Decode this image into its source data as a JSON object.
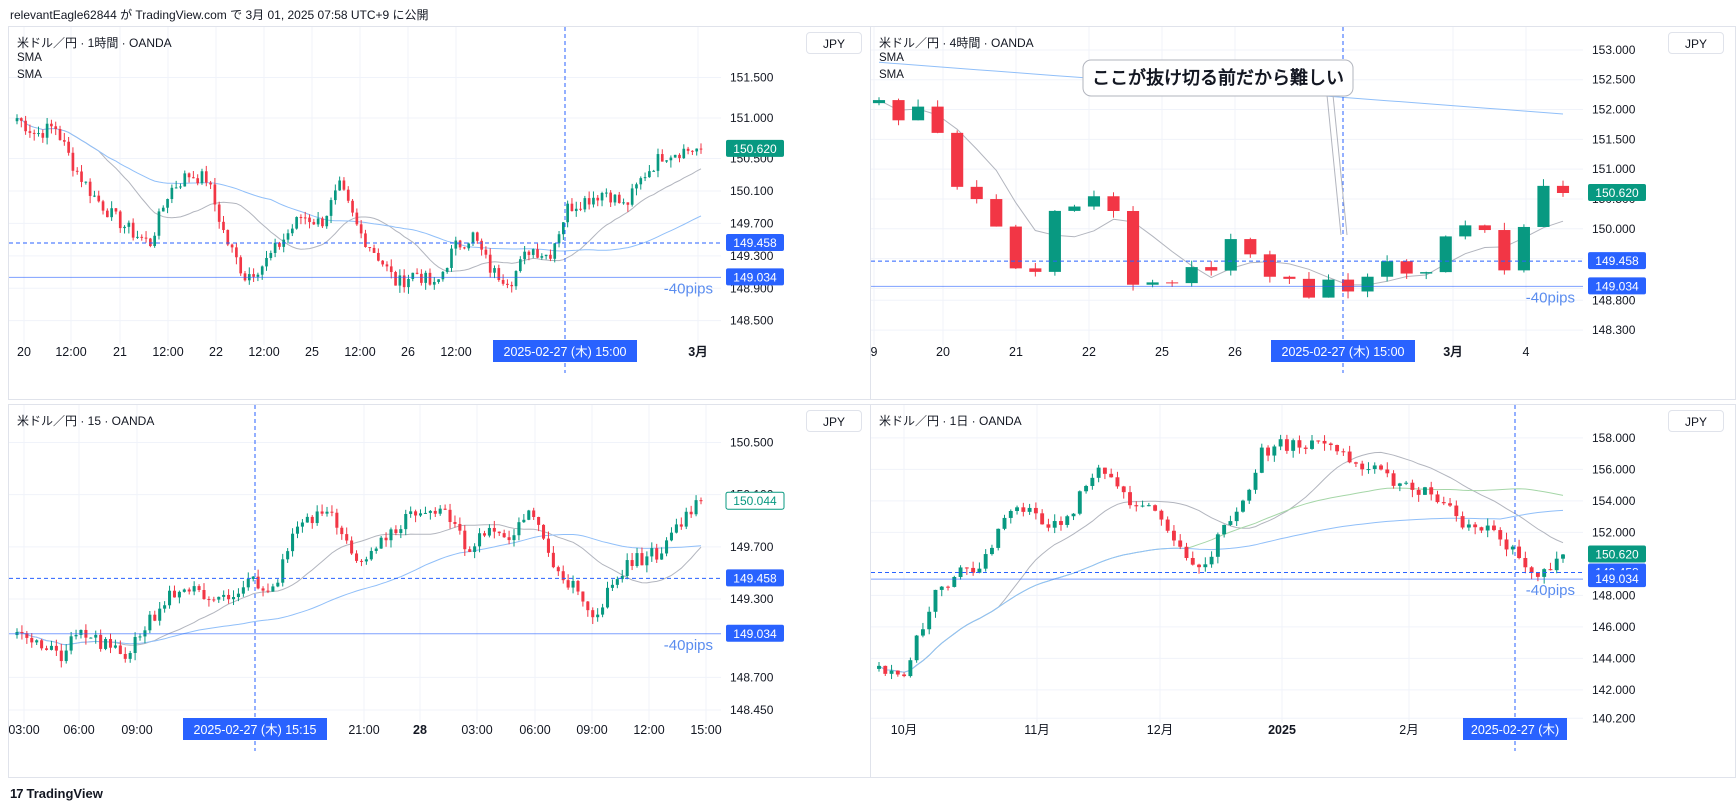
{
  "header": "relevantEagle62844 が TradingView.com で 3月 01, 2025 07:58 UTC+9 に公開",
  "footer": {
    "logo_icon": "tradingview-logo-icon",
    "text": "TradingView"
  },
  "colors": {
    "up": "#089981",
    "down": "#f23645",
    "blue": "#2962ff",
    "sma_gray": "#b2b5be",
    "sma_blue": "#90bff9",
    "sma_green": "#a5d6a7"
  },
  "chart_data": [
    {
      "type": "candlestick",
      "title": "米ドル／円 · 1時間 · OANDA",
      "indicators": [
        "SMA",
        "SMA"
      ],
      "currency": "JPY",
      "x_ticks": [
        "20",
        "12:00",
        "21",
        "12:00",
        "22",
        "12:00",
        "25",
        "12:00",
        "26",
        "12:00",
        "3月"
      ],
      "y_ticks": [
        151.5,
        151.0,
        150.5,
        150.1,
        149.7,
        149.3,
        148.9,
        148.5
      ],
      "ylim": [
        148.2,
        151.95
      ],
      "last_price": "150.620",
      "hlines": [
        {
          "label": "149.458",
          "value": 149.458,
          "style": "dashed"
        },
        {
          "label": "149.034",
          "value": 149.034,
          "style": "solid"
        }
      ],
      "annotations": [
        "-40pips"
      ],
      "crosshair_label": "2025-02-27 (木)   15:00",
      "anchors": [
        151.0,
        150.8,
        150.9,
        150.4,
        150.05,
        149.8,
        149.6,
        149.45,
        150.1,
        150.3,
        150.25,
        149.5,
        149.05,
        149.2,
        149.5,
        149.8,
        149.7,
        150.15,
        149.6,
        149.3,
        148.95,
        149.1,
        148.9,
        149.4,
        149.55,
        149.1,
        149.0,
        149.4,
        149.3,
        149.9,
        150.0,
        150.1,
        149.9,
        150.3,
        150.55,
        150.6,
        150.62
      ]
    },
    {
      "type": "candlestick",
      "title": "米ドル／円 · 4時間 · OANDA",
      "indicators": [
        "SMA",
        "SMA"
      ],
      "currency": "JPY",
      "x_ticks": [
        "9",
        "20",
        "21",
        "22",
        "25",
        "26",
        "3月",
        "4"
      ],
      "y_ticks": [
        153.0,
        152.5,
        152.0,
        151.5,
        151.0,
        150.5,
        150.0,
        149.5,
        149.0,
        148.8,
        148.3
      ],
      "ylim": [
        148.05,
        153.15
      ],
      "last_price": "150.620",
      "hlines": [
        {
          "label": "149.458",
          "value": 149.458,
          "style": "dashed"
        },
        {
          "label": "149.034",
          "value": 149.034,
          "style": "solid"
        }
      ],
      "annotations": [
        "-40pips",
        "ここが抜け切る前だから難しい"
      ],
      "crosshair_label": "2025-02-27 (木)   15:00",
      "anchors": [
        152.1,
        151.8,
        151.95,
        151.6,
        150.8,
        150.4,
        150.1,
        149.45,
        149.3,
        150.35,
        150.3,
        150.45,
        150.4,
        149.0,
        149.05,
        149.2,
        149.4,
        149.35,
        149.8,
        149.45,
        149.3,
        149.25,
        148.95,
        149.15,
        149.05,
        149.3,
        149.35,
        149.15,
        149.3,
        149.8,
        149.95,
        150.0,
        149.3,
        150.0,
        150.7,
        150.6
      ]
    },
    {
      "type": "candlestick",
      "title": "米ドル／円 · 15 · OANDA",
      "indicators": [],
      "currency": "JPY",
      "x_ticks": [
        "03:00",
        "06:00",
        "09:00",
        "21:00",
        "28",
        "03:00",
        "06:00",
        "09:00",
        "12:00",
        "15:00"
      ],
      "y_ticks": [
        150.5,
        150.1,
        149.7,
        149.3,
        148.7,
        148.45
      ],
      "ylim": [
        148.35,
        150.68
      ],
      "last_price": "150.044",
      "hlines": [
        {
          "label": "149.458",
          "value": 149.458,
          "style": "dashed"
        },
        {
          "label": "149.034",
          "value": 149.034,
          "style": "solid"
        }
      ],
      "annotations": [
        "-40pips"
      ],
      "crosshair_label": "2025-02-27 (木)   15:15",
      "anchors": [
        149.1,
        148.95,
        148.85,
        149.05,
        148.95,
        148.85,
        149.1,
        149.3,
        149.4,
        149.25,
        149.3,
        149.45,
        149.35,
        149.9,
        149.95,
        149.9,
        149.6,
        149.75,
        149.9,
        150.0,
        149.95,
        149.7,
        149.8,
        149.75,
        150.0,
        149.6,
        149.4,
        149.1,
        149.5,
        149.6,
        149.65,
        149.9,
        150.05
      ]
    },
    {
      "type": "candlestick",
      "title": "米ドル／円 · 1日 · OANDA",
      "indicators": [],
      "currency": "JPY",
      "x_ticks": [
        "10月",
        "11月",
        "12月",
        "2025",
        "2月"
      ],
      "y_ticks": [
        158.0,
        156.0,
        154.0,
        152.0,
        148.0,
        146.0,
        144.0,
        142.0,
        140.2
      ],
      "ylim": [
        139.9,
        159.2
      ],
      "last_price": "150.620",
      "hlines": [
        {
          "label": "149.458",
          "value": 149.458,
          "style": "dashed"
        },
        {
          "label": "149.034",
          "value": 149.034,
          "style": "solid"
        }
      ],
      "annotations": [
        "-40pips"
      ],
      "crosshair_label": "2025-02-27 (木)",
      "anchors": [
        143.5,
        142.6,
        145.5,
        148.5,
        149.3,
        150.0,
        152.3,
        153.7,
        153.0,
        152.0,
        154.2,
        156.0,
        154.5,
        153.8,
        153.0,
        150.7,
        150.0,
        151.7,
        153.8,
        157.0,
        157.7,
        157.4,
        158.0,
        157.5,
        155.6,
        156.0,
        155.0,
        154.5,
        154.0,
        152.0,
        152.3,
        151.5,
        150.0,
        149.3,
        150.6
      ]
    }
  ]
}
